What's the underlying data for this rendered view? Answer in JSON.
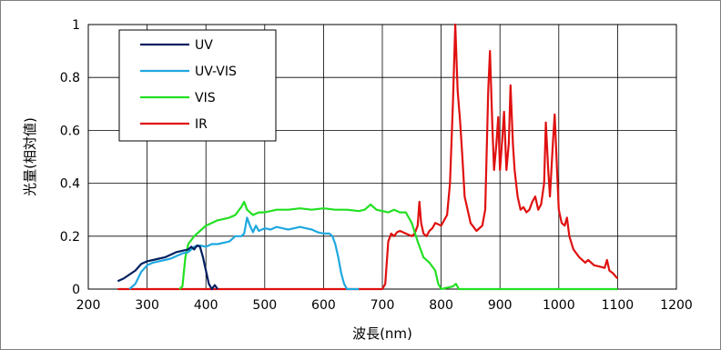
{
  "chart_data": {
    "type": "line",
    "title": "",
    "xlabel": "波長(nm)",
    "ylabel": "光量(相対値)",
    "xlim": [
      200,
      1200
    ],
    "ylim": [
      0,
      1
    ],
    "xticks": [
      "200",
      "300",
      "400",
      "500",
      "600",
      "700",
      "800",
      "900",
      "1000",
      "1100",
      "1200"
    ],
    "yticks": [
      "0",
      "0.2",
      "0.4",
      "0.6",
      "0.8",
      "1"
    ],
    "grid": true,
    "legend_position": "top-left",
    "series": [
      {
        "name": "UV",
        "color": "#002060",
        "points": [
          [
            250,
            0.03
          ],
          [
            260,
            0.04
          ],
          [
            270,
            0.055
          ],
          [
            280,
            0.07
          ],
          [
            290,
            0.095
          ],
          [
            300,
            0.105
          ],
          [
            310,
            0.11
          ],
          [
            320,
            0.115
          ],
          [
            330,
            0.12
          ],
          [
            340,
            0.13
          ],
          [
            350,
            0.14
          ],
          [
            360,
            0.145
          ],
          [
            370,
            0.15
          ],
          [
            375,
            0.16
          ],
          [
            380,
            0.15
          ],
          [
            385,
            0.165
          ],
          [
            390,
            0.16
          ],
          [
            395,
            0.12
          ],
          [
            400,
            0.07
          ],
          [
            405,
            0.02
          ],
          [
            410,
            0.0
          ],
          [
            415,
            0.015
          ],
          [
            420,
            0.0
          ]
        ]
      },
      {
        "name": "UV-VIS",
        "color": "#1FA8E0",
        "points": [
          [
            270,
            0.0
          ],
          [
            280,
            0.02
          ],
          [
            290,
            0.065
          ],
          [
            300,
            0.09
          ],
          [
            310,
            0.1
          ],
          [
            320,
            0.105
          ],
          [
            330,
            0.11
          ],
          [
            340,
            0.115
          ],
          [
            350,
            0.125
          ],
          [
            360,
            0.135
          ],
          [
            370,
            0.14
          ],
          [
            380,
            0.16
          ],
          [
            390,
            0.165
          ],
          [
            400,
            0.16
          ],
          [
            410,
            0.17
          ],
          [
            420,
            0.17
          ],
          [
            430,
            0.175
          ],
          [
            440,
            0.18
          ],
          [
            450,
            0.2
          ],
          [
            460,
            0.2
          ],
          [
            465,
            0.21
          ],
          [
            470,
            0.27
          ],
          [
            475,
            0.24
          ],
          [
            480,
            0.215
          ],
          [
            485,
            0.24
          ],
          [
            490,
            0.22
          ],
          [
            500,
            0.23
          ],
          [
            510,
            0.225
          ],
          [
            520,
            0.235
          ],
          [
            530,
            0.23
          ],
          [
            540,
            0.225
          ],
          [
            550,
            0.23
          ],
          [
            560,
            0.235
          ],
          [
            570,
            0.23
          ],
          [
            580,
            0.225
          ],
          [
            590,
            0.215
          ],
          [
            600,
            0.21
          ],
          [
            610,
            0.21
          ],
          [
            615,
            0.2
          ],
          [
            620,
            0.17
          ],
          [
            625,
            0.12
          ],
          [
            630,
            0.06
          ],
          [
            635,
            0.02
          ],
          [
            640,
            0.0
          ],
          [
            660,
            0.0
          ]
        ]
      },
      {
        "name": "VIS",
        "color": "#22E022",
        "points": [
          [
            355,
            0.0
          ],
          [
            360,
            0.01
          ],
          [
            365,
            0.12
          ],
          [
            370,
            0.17
          ],
          [
            380,
            0.2
          ],
          [
            390,
            0.22
          ],
          [
            400,
            0.24
          ],
          [
            410,
            0.25
          ],
          [
            420,
            0.26
          ],
          [
            430,
            0.265
          ],
          [
            440,
            0.27
          ],
          [
            450,
            0.28
          ],
          [
            460,
            0.31
          ],
          [
            465,
            0.33
          ],
          [
            470,
            0.3
          ],
          [
            480,
            0.28
          ],
          [
            490,
            0.29
          ],
          [
            500,
            0.29
          ],
          [
            510,
            0.295
          ],
          [
            520,
            0.3
          ],
          [
            540,
            0.3
          ],
          [
            560,
            0.305
          ],
          [
            580,
            0.3
          ],
          [
            600,
            0.305
          ],
          [
            620,
            0.3
          ],
          [
            640,
            0.3
          ],
          [
            660,
            0.295
          ],
          [
            670,
            0.3
          ],
          [
            680,
            0.32
          ],
          [
            690,
            0.3
          ],
          [
            700,
            0.295
          ],
          [
            710,
            0.29
          ],
          [
            720,
            0.3
          ],
          [
            730,
            0.29
          ],
          [
            740,
            0.29
          ],
          [
            750,
            0.25
          ],
          [
            760,
            0.18
          ],
          [
            770,
            0.12
          ],
          [
            780,
            0.1
          ],
          [
            790,
            0.07
          ],
          [
            795,
            0.02
          ],
          [
            800,
            0.0
          ],
          [
            820,
            0.01
          ],
          [
            825,
            0.02
          ],
          [
            830,
            0.0
          ],
          [
            900,
            0.0
          ],
          [
            1000,
            0.0
          ],
          [
            1100,
            0.0
          ]
        ]
      },
      {
        "name": "IR",
        "color": "#E01010",
        "points": [
          [
            250,
            0.0
          ],
          [
            700,
            0.0
          ],
          [
            705,
            0.02
          ],
          [
            710,
            0.18
          ],
          [
            715,
            0.21
          ],
          [
            720,
            0.2
          ],
          [
            725,
            0.215
          ],
          [
            730,
            0.22
          ],
          [
            740,
            0.21
          ],
          [
            750,
            0.2
          ],
          [
            755,
            0.21
          ],
          [
            760,
            0.24
          ],
          [
            763,
            0.33
          ],
          [
            766,
            0.25
          ],
          [
            770,
            0.21
          ],
          [
            775,
            0.2
          ],
          [
            780,
            0.22
          ],
          [
            785,
            0.23
          ],
          [
            790,
            0.25
          ],
          [
            800,
            0.24
          ],
          [
            810,
            0.28
          ],
          [
            815,
            0.4
          ],
          [
            820,
            0.7
          ],
          [
            824,
            1.0
          ],
          [
            828,
            0.75
          ],
          [
            832,
            0.64
          ],
          [
            836,
            0.5
          ],
          [
            840,
            0.35
          ],
          [
            850,
            0.25
          ],
          [
            860,
            0.22
          ],
          [
            870,
            0.24
          ],
          [
            875,
            0.3
          ],
          [
            880,
            0.75
          ],
          [
            883,
            0.9
          ],
          [
            887,
            0.62
          ],
          [
            890,
            0.45
          ],
          [
            894,
            0.55
          ],
          [
            897,
            0.65
          ],
          [
            900,
            0.45
          ],
          [
            904,
            0.57
          ],
          [
            907,
            0.67
          ],
          [
            911,
            0.45
          ],
          [
            915,
            0.55
          ],
          [
            918,
            0.77
          ],
          [
            922,
            0.55
          ],
          [
            925,
            0.45
          ],
          [
            930,
            0.35
          ],
          [
            935,
            0.3
          ],
          [
            940,
            0.31
          ],
          [
            945,
            0.29
          ],
          [
            950,
            0.3
          ],
          [
            955,
            0.33
          ],
          [
            960,
            0.35
          ],
          [
            965,
            0.3
          ],
          [
            970,
            0.32
          ],
          [
            975,
            0.4
          ],
          [
            978,
            0.63
          ],
          [
            982,
            0.45
          ],
          [
            985,
            0.35
          ],
          [
            990,
            0.55
          ],
          [
            993,
            0.66
          ],
          [
            997,
            0.45
          ],
          [
            1000,
            0.3
          ],
          [
            1005,
            0.25
          ],
          [
            1010,
            0.24
          ],
          [
            1014,
            0.27
          ],
          [
            1018,
            0.2
          ],
          [
            1025,
            0.15
          ],
          [
            1035,
            0.12
          ],
          [
            1045,
            0.1
          ],
          [
            1050,
            0.11
          ],
          [
            1060,
            0.09
          ],
          [
            1070,
            0.085
          ],
          [
            1078,
            0.08
          ],
          [
            1082,
            0.11
          ],
          [
            1086,
            0.07
          ],
          [
            1092,
            0.06
          ],
          [
            1100,
            0.04
          ]
        ]
      }
    ]
  }
}
